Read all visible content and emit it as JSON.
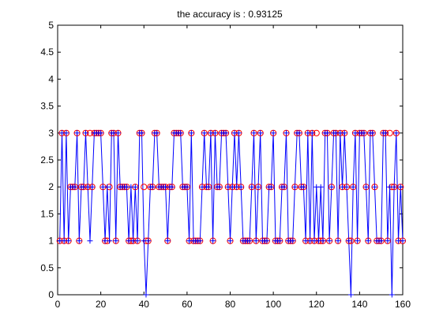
{
  "chart_data": {
    "type": "scatter",
    "title": "the accuracy is : 0.93125",
    "xlabel": "",
    "ylabel": "",
    "xlim": [
      0,
      160
    ],
    "ylim": [
      0,
      5
    ],
    "xticks": [
      "0",
      "20",
      "40",
      "60",
      "80",
      "100",
      "120",
      "140",
      "160"
    ],
    "yticks": [
      "0",
      "0.5",
      "1",
      "1.5",
      "2",
      "2.5",
      "3",
      "3.5",
      "4",
      "4.5",
      "5"
    ],
    "grid": false,
    "legend": "none",
    "x": [
      1,
      2,
      3,
      4,
      5,
      6,
      7,
      8,
      9,
      10,
      11,
      12,
      13,
      14,
      15,
      16,
      17,
      18,
      19,
      20,
      21,
      22,
      23,
      24,
      25,
      26,
      27,
      28,
      29,
      30,
      31,
      32,
      33,
      34,
      35,
      36,
      37,
      38,
      39,
      40,
      41,
      42,
      43,
      44,
      45,
      46,
      47,
      48,
      49,
      50,
      51,
      52,
      53,
      54,
      55,
      56,
      57,
      58,
      59,
      60,
      61,
      62,
      63,
      64,
      65,
      66,
      67,
      68,
      69,
      70,
      71,
      72,
      73,
      74,
      75,
      76,
      77,
      78,
      79,
      80,
      81,
      82,
      83,
      84,
      85,
      86,
      87,
      88,
      89,
      90,
      91,
      92,
      93,
      94,
      95,
      96,
      97,
      98,
      99,
      100,
      101,
      102,
      103,
      104,
      105,
      106,
      107,
      108,
      109,
      110,
      111,
      112,
      113,
      114,
      115,
      116,
      117,
      118,
      119,
      120,
      121,
      122,
      123,
      124,
      125,
      126,
      127,
      128,
      129,
      130,
      131,
      132,
      133,
      134,
      135,
      136,
      137,
      138,
      139,
      140,
      141,
      142,
      143,
      144,
      145,
      146,
      147,
      148,
      149,
      150,
      151,
      152,
      153,
      154,
      155,
      156,
      157,
      158,
      159,
      160
    ],
    "series": [
      {
        "role": "actual",
        "marker": "o",
        "color": "#ff0000",
        "values": [
          1,
          3,
          1,
          3,
          1,
          2,
          2,
          2,
          3,
          1,
          2,
          2,
          3,
          2,
          3,
          2,
          3,
          3,
          3,
          3,
          2,
          1,
          1,
          2,
          3,
          3,
          1,
          3,
          2,
          2,
          2,
          2,
          1,
          1,
          1,
          2,
          1,
          3,
          3,
          2,
          1,
          1,
          2,
          2,
          3,
          3,
          2,
          2,
          2,
          2,
          1,
          2,
          2,
          3,
          3,
          3,
          3,
          2,
          2,
          2,
          1,
          3,
          1,
          1,
          1,
          1,
          2,
          3,
          2,
          2,
          3,
          1,
          3,
          2,
          2,
          3,
          3,
          3,
          2,
          1,
          2,
          3,
          2,
          3,
          2,
          1,
          1,
          1,
          1,
          2,
          3,
          1,
          2,
          3,
          1,
          1,
          1,
          2,
          2,
          3,
          1,
          1,
          1,
          2,
          2,
          3,
          1,
          1,
          1,
          2,
          3,
          3,
          2,
          2,
          1,
          3,
          1,
          3,
          1,
          3,
          1,
          1,
          1,
          3,
          3,
          1,
          2,
          3,
          3,
          1,
          3,
          2,
          3,
          2,
          1,
          1,
          2,
          3,
          1,
          3,
          3,
          3,
          2,
          1,
          3,
          3,
          2,
          1,
          1,
          1,
          3,
          3,
          1,
          3,
          2,
          2,
          3,
          1,
          2,
          1
        ]
      },
      {
        "role": "predicted",
        "marker": "+",
        "color": "#0000ff",
        "values": [
          1,
          3,
          1,
          3,
          1,
          2,
          2,
          2,
          3,
          1,
          2,
          2,
          3,
          2,
          1,
          2,
          3,
          3,
          3,
          3,
          2,
          1,
          2,
          1,
          3,
          3,
          1,
          3,
          2,
          2,
          2,
          2,
          1,
          2,
          1,
          2,
          1,
          3,
          3,
          1,
          0,
          1,
          2,
          2,
          3,
          3,
          2,
          2,
          2,
          2,
          1,
          2,
          2,
          3,
          3,
          3,
          3,
          2,
          2,
          2,
          1,
          3,
          1,
          1,
          1,
          1,
          2,
          3,
          2,
          2,
          3,
          1,
          3,
          2,
          2,
          3,
          3,
          3,
          2,
          1,
          2,
          3,
          2,
          3,
          2,
          1,
          1,
          1,
          1,
          2,
          3,
          1,
          2,
          3,
          1,
          1,
          1,
          2,
          2,
          3,
          1,
          1,
          1,
          2,
          2,
          3,
          1,
          1,
          1,
          2,
          3,
          3,
          2,
          2,
          1,
          3,
          1,
          3,
          1,
          2,
          1,
          2,
          1,
          3,
          3,
          1,
          2,
          3,
          3,
          1,
          3,
          2,
          3,
          2,
          1,
          0,
          2,
          3,
          1,
          3,
          3,
          3,
          2,
          1,
          3,
          3,
          2,
          1,
          1,
          1,
          3,
          3,
          1,
          2,
          0,
          2,
          3,
          1,
          2,
          1
        ]
      }
    ]
  }
}
